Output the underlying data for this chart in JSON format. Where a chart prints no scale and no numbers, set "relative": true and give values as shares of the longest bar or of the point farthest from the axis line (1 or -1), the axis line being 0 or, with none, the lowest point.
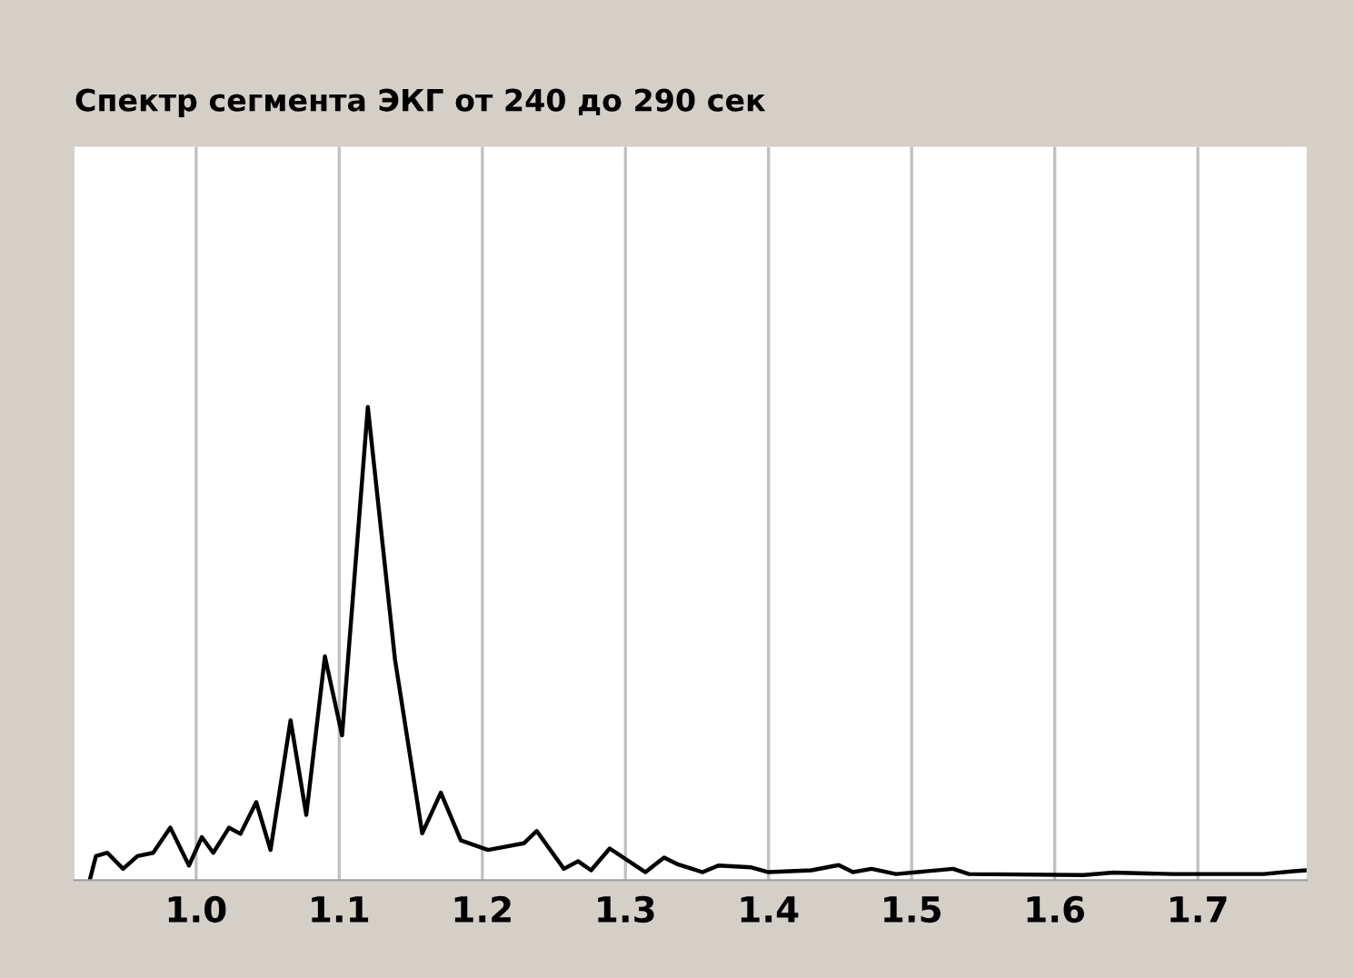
{
  "chart_data": {
    "type": "line",
    "title": "Спектр сегмента ЭКГ от 240 до 290 сек",
    "relative": true,
    "xlim": [
      0.915,
      1.776
    ],
    "xticks": [
      {
        "value": 1.0,
        "label": "1.0"
      },
      1.1,
      1.2,
      1.3,
      1.4,
      1.5,
      1.6,
      1.7
    ],
    "grid": true,
    "marker": "none",
    "line_style": "solid",
    "series": [
      {
        "color": "#000000",
        "x": [
          0.926,
          0.93,
          0.938,
          0.949,
          0.959,
          0.97,
          0.982,
          0.995,
          1.004,
          1.012,
          1.023,
          1.031,
          1.042,
          1.052,
          1.066,
          1.077,
          1.09,
          1.102,
          1.12,
          1.139,
          1.158,
          1.171,
          1.185,
          1.204,
          1.229,
          1.238,
          1.257,
          1.267,
          1.276,
          1.289,
          1.314,
          1.327,
          1.337,
          1.354,
          1.365,
          1.388,
          1.4,
          1.43,
          1.449,
          1.459,
          1.472,
          1.489,
          1.529,
          1.54,
          1.62,
          1.641,
          1.683,
          1.746,
          1.767,
          1.776
        ],
        "values": [
          0.004,
          0.051,
          0.058,
          0.024,
          0.051,
          0.058,
          0.111,
          0.031,
          0.091,
          0.058,
          0.111,
          0.098,
          0.165,
          0.064,
          0.338,
          0.138,
          0.473,
          0.306,
          1.0,
          0.466,
          0.099,
          0.185,
          0.084,
          0.064,
          0.078,
          0.104,
          0.024,
          0.04,
          0.021,
          0.067,
          0.017,
          0.048,
          0.033,
          0.017,
          0.031,
          0.027,
          0.017,
          0.021,
          0.032,
          0.017,
          0.024,
          0.013,
          0.024,
          0.013,
          0.011,
          0.016,
          0.013,
          0.013,
          0.019,
          0.021
        ]
      }
    ]
  }
}
